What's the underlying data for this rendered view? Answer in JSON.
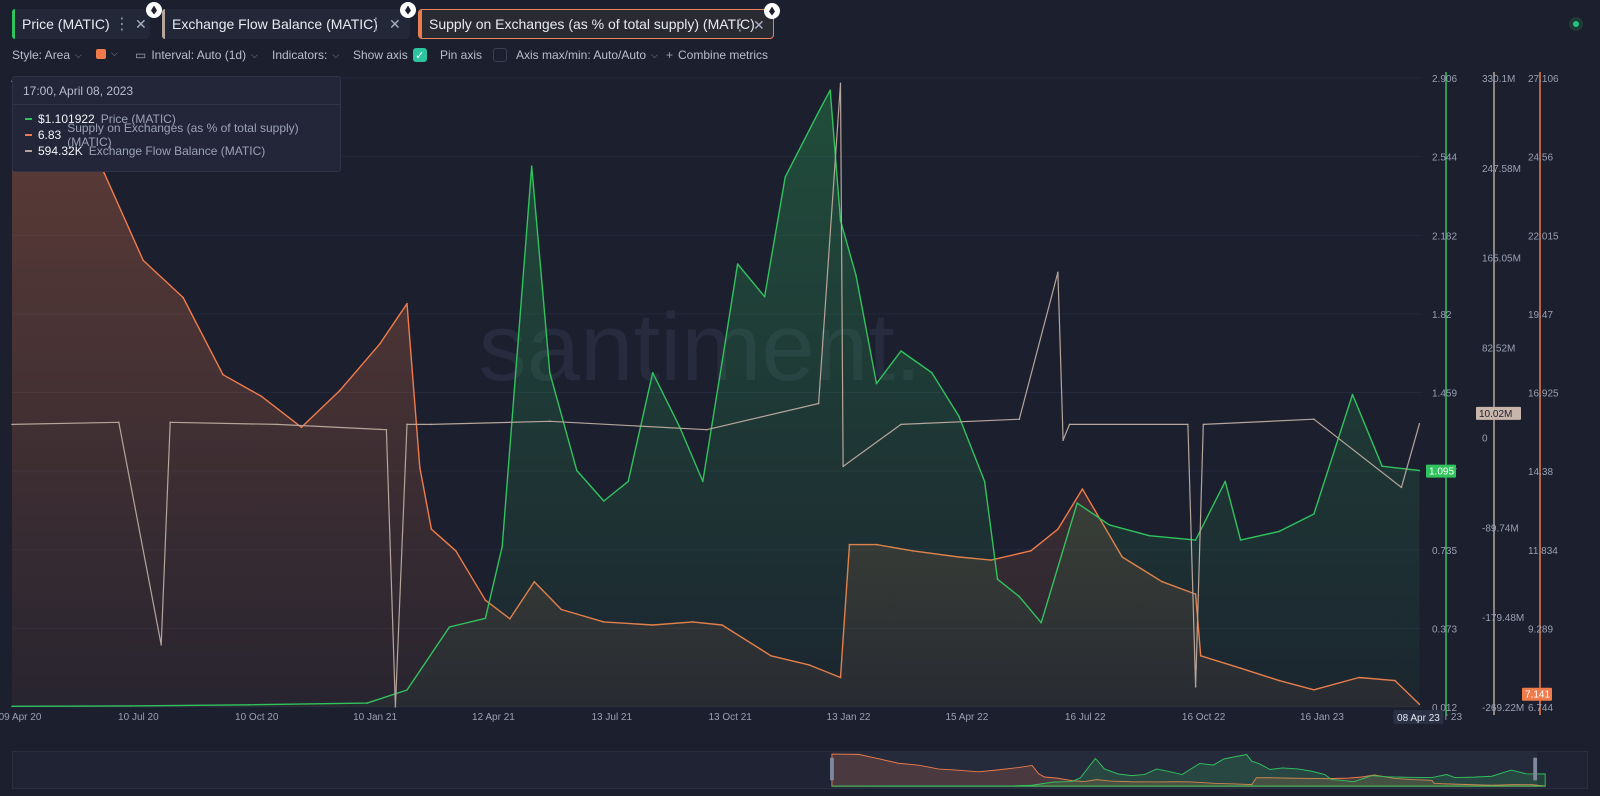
{
  "tabs": [
    {
      "label": "Price (MATIC)",
      "color": "#30c35d"
    },
    {
      "label": "Exchange Flow Balance (MATIC)",
      "color": "#b6a59b"
    },
    {
      "label": "Supply on Exchanges (as % of total supply) (MATIC)",
      "color": "#f07b4a"
    }
  ],
  "toolbar": {
    "style_label": "Style: Area",
    "interval_label": "Interval: Auto (1d)",
    "indicators_label": "Indicators:",
    "show_axis_label": "Show axis",
    "pin_axis_label": "Pin axis",
    "axis_minmax_label": "Axis max/min: Auto/Auto",
    "combine_label": "Combine metrics"
  },
  "watermark": "santiment.",
  "tooltip": {
    "date": "17:00, April 08, 2023",
    "rows": [
      {
        "value": "$1.101922",
        "name": "Price (MATIC)",
        "color": "#30c35d"
      },
      {
        "value": "6.83",
        "name": "Supply on Exchanges (as % of total supply) (MATIC)",
        "color": "#f07b4a"
      },
      {
        "value": "594.32K",
        "name": "Exchange Flow Balance (MATIC)",
        "color": "#b6a59b"
      }
    ]
  },
  "chart_data": {
    "type": "area",
    "x_ticks": [
      "09 Apr 20",
      "10 Jul 20",
      "10 Oct 20",
      "10 Jan 21",
      "12 Apr 21",
      "13 Jul 21",
      "13 Oct 21",
      "13 Jan 22",
      "15 Apr 22",
      "16 Jul 22",
      "16 Oct 22",
      "16 Jan 23",
      "08 Apr 23"
    ],
    "x_cursor_label": "08 Apr 23",
    "x_cursor_tail": "r 23",
    "axes": {
      "price": {
        "ticks": [
          "2.906",
          "2.544",
          "2.182",
          "1.82",
          "1.459",
          "1.097",
          "0.735",
          "0.373",
          "0.012"
        ],
        "ylim": [
          0.012,
          2.906
        ],
        "current": "1.095",
        "color": "#30c35d"
      },
      "flow": {
        "ticks": [
          "330.1M",
          "247.58M",
          "165.05M",
          "82.52M",
          "0",
          "-89.74M",
          "-179.48M",
          "-269.22M"
        ],
        "ylim": [
          -269220000,
          330100000
        ],
        "current": "10.02M",
        "color": "#b6a59b"
      },
      "supply": {
        "ticks": [
          "27.106",
          "24.56",
          "22.015",
          "19.47",
          "16.925",
          "14.38",
          "11.834",
          "9.289",
          "6.744"
        ],
        "ylim": [
          6.744,
          27.106
        ],
        "current": "7.141",
        "color": "#f07b4a"
      }
    },
    "series": [
      {
        "name": "Price (MATIC)",
        "color": "#30c35d",
        "x": [
          "2020-04-09",
          "2020-07-10",
          "2020-10-10",
          "2021-01-10",
          "2021-02-10",
          "2021-03-15",
          "2021-04-12",
          "2021-04-25",
          "2021-05-18",
          "2021-06-01",
          "2021-06-22",
          "2021-07-13",
          "2021-08-01",
          "2021-08-20",
          "2021-09-10",
          "2021-09-28",
          "2021-10-13",
          "2021-10-25",
          "2021-11-15",
          "2021-12-01",
          "2021-12-27",
          "2022-01-05",
          "2022-01-13",
          "2022-01-25",
          "2022-02-10",
          "2022-03-01",
          "2022-03-25",
          "2022-04-15",
          "2022-05-05",
          "2022-05-15",
          "2022-06-01",
          "2022-06-18",
          "2022-07-16",
          "2022-08-10",
          "2022-09-10",
          "2022-10-16",
          "2022-11-08",
          "2022-11-20",
          "2022-12-20",
          "2023-01-16",
          "2023-02-15",
          "2023-03-10",
          "2023-04-08"
        ],
        "y": [
          0.015,
          0.017,
          0.022,
          0.03,
          0.09,
          0.38,
          0.42,
          0.75,
          2.5,
          1.55,
          1.1,
          0.96,
          1.05,
          1.55,
          1.3,
          1.05,
          1.6,
          2.05,
          1.9,
          2.45,
          2.75,
          2.85,
          2.25,
          2.0,
          1.5,
          1.65,
          1.55,
          1.35,
          1.05,
          0.6,
          0.52,
          0.4,
          0.95,
          0.85,
          0.8,
          0.78,
          1.05,
          0.78,
          0.82,
          0.9,
          1.45,
          1.12,
          1.1
        ]
      },
      {
        "name": "Supply on Exchanges (as % of total supply) (MATIC)",
        "color": "#f07b4a",
        "x": [
          "2020-04-09",
          "2020-05-20",
          "2020-06-20",
          "2020-07-20",
          "2020-08-20",
          "2020-09-20",
          "2020-10-20",
          "2020-11-20",
          "2020-12-20",
          "2021-01-20",
          "2021-02-10",
          "2021-02-20",
          "2021-03-01",
          "2021-03-20",
          "2021-04-12",
          "2021-05-01",
          "2021-05-20",
          "2021-06-10",
          "2021-07-13",
          "2021-08-20",
          "2021-09-20",
          "2021-10-13",
          "2021-11-20",
          "2021-12-20",
          "2022-01-13",
          "2022-01-20",
          "2022-02-10",
          "2022-03-10",
          "2022-04-15",
          "2022-05-10",
          "2022-06-10",
          "2022-07-01",
          "2022-07-20",
          "2022-08-20",
          "2022-09-20",
          "2022-10-16",
          "2022-10-20",
          "2022-11-20",
          "2022-12-20",
          "2023-01-16",
          "2023-02-20",
          "2023-03-20",
          "2023-04-08"
        ],
        "y": [
          27.0,
          26.8,
          24.0,
          21.2,
          20.0,
          17.5,
          16.8,
          15.8,
          17.0,
          18.5,
          19.8,
          14.5,
          12.5,
          11.8,
          10.2,
          9.6,
          10.8,
          9.9,
          9.5,
          9.4,
          9.5,
          9.4,
          8.4,
          8.1,
          7.7,
          12.0,
          12.0,
          11.8,
          11.6,
          11.5,
          11.8,
          12.5,
          13.8,
          11.6,
          10.8,
          10.4,
          8.4,
          8.0,
          7.6,
          7.3,
          7.7,
          7.6,
          6.83
        ]
      },
      {
        "name": "Exchange Flow Balance (MATIC)",
        "color": "#b6a59b",
        "x": [
          "2020-04-09",
          "2020-07-01",
          "2020-08-03",
          "2020-08-10",
          "2020-11-01",
          "2021-01-25",
          "2021-02-01",
          "2021-02-10",
          "2021-03-01",
          "2021-06-01",
          "2021-10-01",
          "2021-12-27",
          "2022-01-13",
          "2022-01-15",
          "2022-03-01",
          "2022-06-01",
          "2022-07-01",
          "2022-07-05",
          "2022-07-10",
          "2022-10-10",
          "2022-10-16",
          "2022-10-22",
          "2023-01-16",
          "2023-03-25",
          "2023-04-08"
        ],
        "y": [
          0,
          2000000,
          -210000000,
          2000000,
          0,
          -5000000,
          -269000000,
          0,
          0,
          3000000,
          -5000000,
          20000000,
          325000000,
          -40000000,
          0,
          5000000,
          145000000,
          -15000000,
          0,
          0,
          -250000000,
          0,
          5000000,
          -60000000,
          594320
        ]
      }
    ]
  }
}
